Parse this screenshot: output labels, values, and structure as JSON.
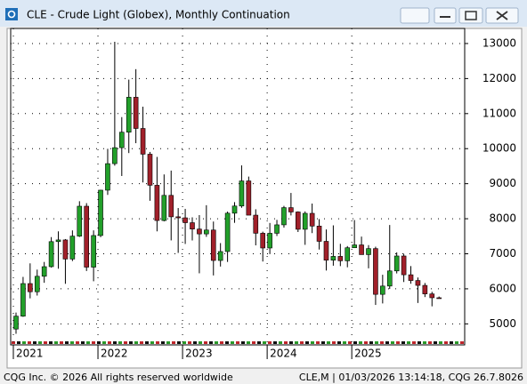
{
  "chart_data": {
    "type": "candlestick",
    "title": "CLE - Crude Light (Globex), Monthly Continuation",
    "footer_left": "CQG Inc. © 2026 All rights reserved worldwide",
    "footer_right": "CLE,M | 01/03/2026 13:14:18, CQG 26.7.8026",
    "categories": [
      "2021",
      null,
      null,
      null,
      null,
      null,
      null,
      null,
      null,
      null,
      null,
      null,
      "2022",
      null,
      null,
      null,
      null,
      null,
      null,
      null,
      null,
      null,
      null,
      null,
      "2023",
      null,
      null,
      null,
      null,
      null,
      null,
      null,
      null,
      null,
      null,
      null,
      "2024",
      null,
      null,
      null,
      null,
      null,
      null,
      null,
      null,
      null,
      null,
      null,
      "2025",
      null,
      null,
      null,
      null,
      null,
      null,
      null,
      null,
      null,
      null,
      null,
      null
    ],
    "open": [
      4852,
      5220,
      6150,
      5916,
      6358,
      6632,
      7347,
      7395,
      6850,
      7503,
      8357,
      6618,
      7521,
      8815,
      9572,
      10028,
      10469,
      11467,
      10576,
      9842,
      8955,
      7949,
      8667,
      8055,
      8026,
      7887,
      7705,
      7567,
      7678,
      6809,
      7064,
      8158,
      8363,
      9079,
      8102,
      7586,
      7165,
      7585,
      7826,
      8317,
      8193,
      7699,
      8154,
      7791,
      7355,
      6817,
      6926,
      6800,
      7172,
      7253,
      6976,
      7148,
      5842,
      6079,
      6511,
      6937,
      6401,
      6237,
      6098,
      5855,
      5745
    ],
    "high": [
      5324,
      6340,
      6727,
      6548,
      6767,
      7476,
      7640,
      7420,
      7667,
      8500,
      8445,
      7668,
      8823,
      9995,
      13050,
      10900,
      11970,
      12268,
      11197,
      9906,
      9764,
      9264,
      9374,
      8305,
      8282,
      8040,
      8104,
      8386,
      7920,
      7305,
      8204,
      8474,
      9522,
      9203,
      8270,
      7631,
      7879,
      7967,
      8367,
      8736,
      8211,
      8209,
      8433,
      7990,
      7694,
      7811,
      7284,
      7220,
      7963,
      7490,
      7248,
      7202,
      6401,
      7821,
      7040,
      7000,
      6649,
      6323,
      6167,
      5915,
      5780
    ],
    "low": [
      4716,
      5200,
      5728,
      5808,
      6172,
      6605,
      6574,
      6143,
      6791,
      7479,
      6508,
      6216,
      7474,
      8680,
      9515,
      9220,
      9874,
      10156,
      9035,
      8512,
      7640,
      7925,
      7382,
      7025,
      7280,
      7380,
      6443,
      7483,
      6382,
      6636,
      6767,
      7883,
      8313,
      8160,
      7240,
      6779,
      6991,
      7507,
      7746,
      8094,
      7621,
      7255,
      7590,
      7121,
      6522,
      6660,
      6648,
      6614,
      7176,
      6998,
      6585,
      5540,
      5583,
      5997,
      6439,
      6194,
      6145,
      5596,
      5765,
      5500,
      5720
    ],
    "close": [
      5220,
      6150,
      5916,
      6358,
      6632,
      7347,
      7395,
      6850,
      7503,
      8357,
      6618,
      7521,
      8815,
      9572,
      10028,
      10469,
      11467,
      10576,
      9842,
      8955,
      7949,
      8667,
      8055,
      8026,
      7887,
      7705,
      7567,
      7678,
      6809,
      7064,
      8158,
      8363,
      9079,
      8102,
      7586,
      7165,
      7585,
      7826,
      8317,
      8193,
      7699,
      8154,
      7791,
      7355,
      6817,
      6926,
      6800,
      7172,
      7253,
      6976,
      7148,
      5842,
      6079,
      6511,
      6937,
      6401,
      6237,
      6098,
      5855,
      5745,
      5740
    ],
    "up_color": "#22a02a",
    "down_color": "#a1202a",
    "ylim": [
      4400,
      13430
    ],
    "yticks": [
      5000,
      6000,
      7000,
      8000,
      9000,
      10000,
      11000,
      12000,
      13000
    ],
    "grid": true
  }
}
